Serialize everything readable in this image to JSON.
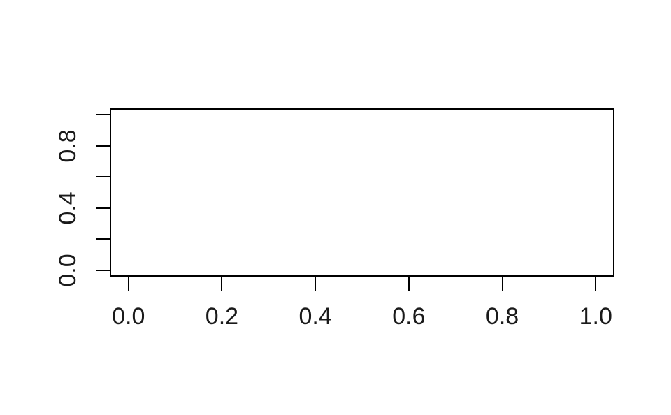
{
  "chart_data": {
    "type": "scatter",
    "title": "",
    "xlabel": "",
    "ylabel": "",
    "series": [],
    "points": [],
    "grid": false,
    "legend": null,
    "xlim": [
      -0.04,
      1.04
    ],
    "ylim": [
      -0.04,
      1.04
    ],
    "x_ticks": [
      0.0,
      0.2,
      0.4,
      0.6,
      0.8,
      1.0
    ],
    "x_tick_labels": [
      "0.0",
      "0.2",
      "0.4",
      "0.6",
      "0.8",
      "1.0"
    ],
    "y_ticks": [
      0.0,
      0.2,
      0.4,
      0.6,
      0.8,
      1.0
    ],
    "y_tick_labels": [
      "0.0",
      "",
      "0.4",
      "",
      "0.8",
      ""
    ],
    "frame_color": "#000000",
    "text_color": "#1a1a1a",
    "background": "#ffffff"
  }
}
